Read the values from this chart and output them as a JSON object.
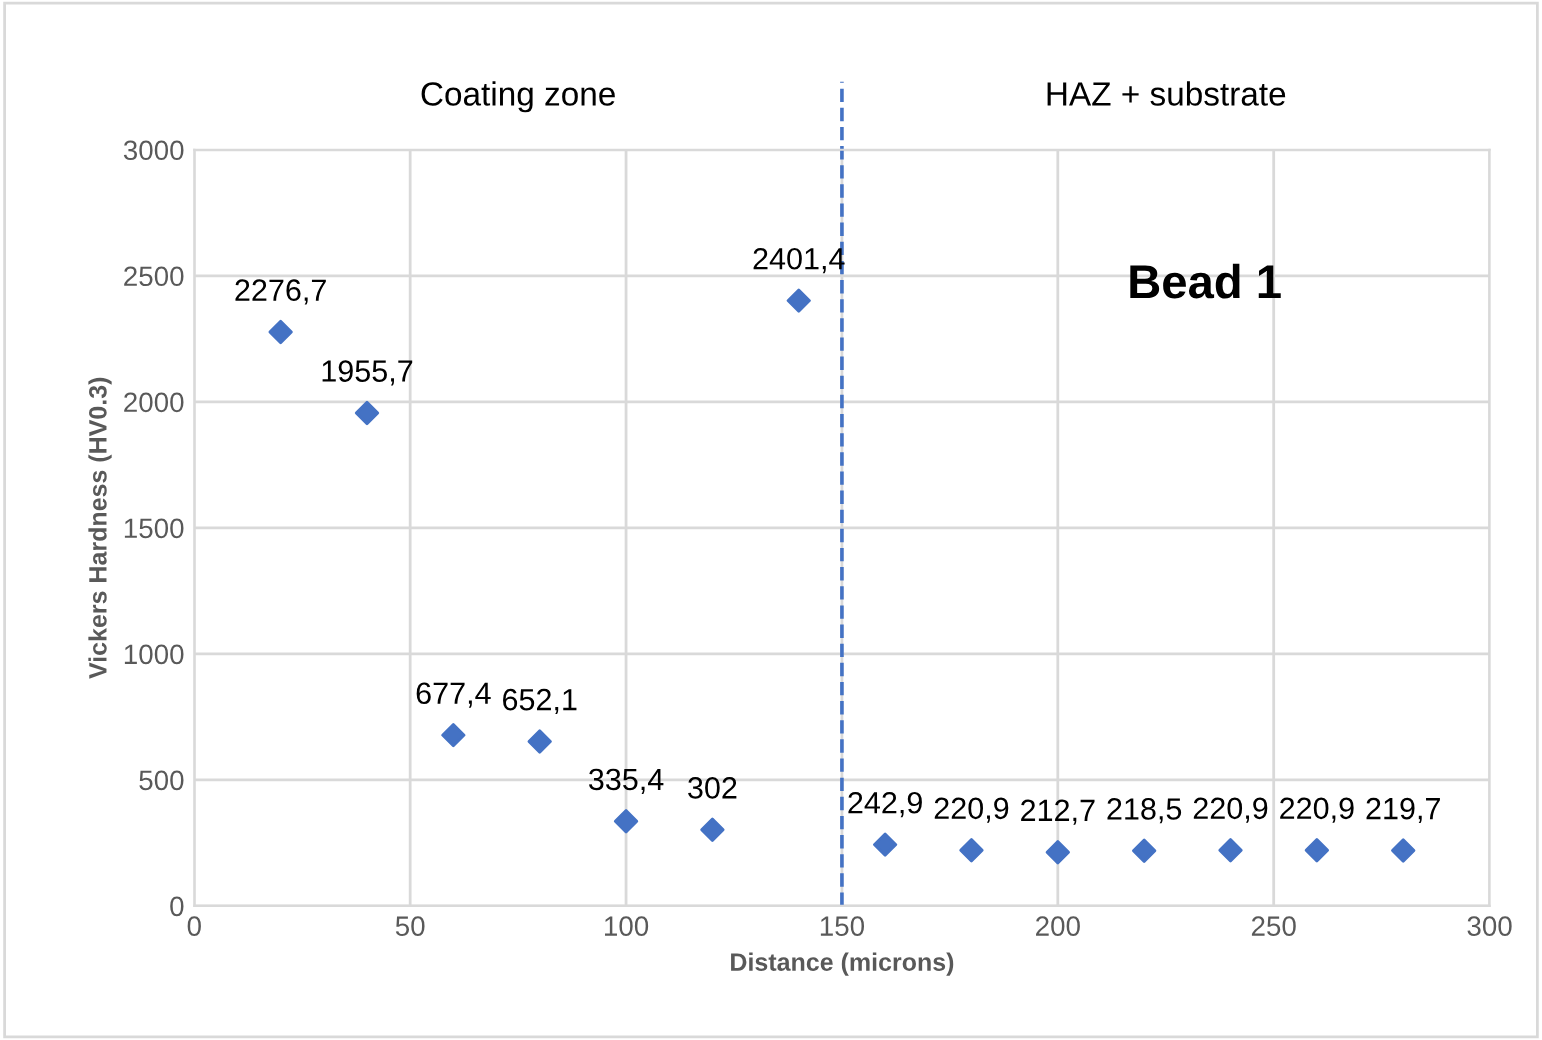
{
  "chart_data": {
    "type": "scatter",
    "xlabel": "Distance (microns)",
    "ylabel": "Vickers Hardness (HV0.3)",
    "x": [
      20,
      40,
      60,
      80,
      100,
      120,
      140,
      160,
      180,
      200,
      220,
      240,
      260,
      280
    ],
    "values": [
      2276.7,
      1955.7,
      677.4,
      652.1,
      335.4,
      302,
      2401.4,
      242.9,
      220.9,
      212.7,
      218.5,
      220.9,
      220.9,
      219.7
    ],
    "value_labels": [
      "2276,7",
      "1955,7",
      "677,4",
      "652,1",
      "335,4",
      "302",
      "2401,4",
      "242,9",
      "220,9",
      "212,7",
      "218,5",
      "220,9",
      "220,9",
      "219,7"
    ],
    "color": "#4472c4",
    "marker": "diamond",
    "xlim": [
      0,
      300
    ],
    "xticks": [
      0,
      50,
      100,
      150,
      200,
      250,
      300
    ],
    "ylim": [
      0,
      3000
    ],
    "yticks": [
      0,
      500,
      1000,
      1500,
      2000,
      2500,
      3000
    ],
    "grid": true,
    "legend": false,
    "ref_lines": [
      {
        "axis": "x",
        "value": 150,
        "color": "#4472c4",
        "line_style": "dashed"
      }
    ],
    "annotations": [
      "Coating zone",
      "HAZ + substrate",
      "Bead 1"
    ]
  }
}
